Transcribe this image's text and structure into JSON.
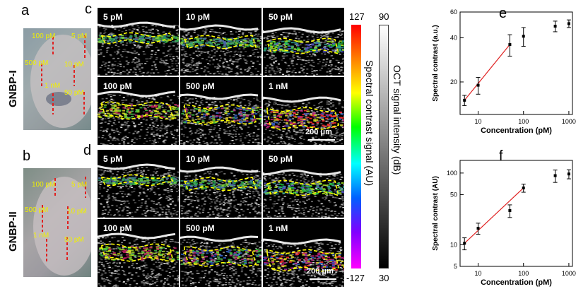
{
  "panels": {
    "a": "a",
    "b": "b",
    "c": "c",
    "d": "d",
    "e": "e",
    "f": "f"
  },
  "side_labels": {
    "top": "GNBP-I",
    "bottom": "GNBP-II"
  },
  "tissue_labels": {
    "top": [
      "100 pM",
      "5 pM",
      "500 pM",
      "10 pM",
      "1 nM",
      "50 pM"
    ],
    "bottom": [
      "100 pM",
      "5 pM",
      "500 pM",
      "10 pM",
      "1 nM",
      "50 pM"
    ]
  },
  "oct_c": [
    "5 pM",
    "10 pM",
    "50 pM",
    "100 pM",
    "500 pM",
    "1 nM"
  ],
  "oct_d": [
    "5 pM",
    "10 pM",
    "50 pM",
    "100 pM",
    "500 pM",
    "1 nM"
  ],
  "scalebar": "200 μm",
  "colorbar_spectral": {
    "max": "127",
    "min": "-127",
    "label": "Spectral contrast signal (AU)"
  },
  "colorbar_oct": {
    "max": "90",
    "min": "30",
    "label": "OCT signal intensity (dB)"
  },
  "colors": {
    "fit_line": "#e02020",
    "label_yellow": "#f0f000",
    "dash": "#ffff00"
  },
  "chart_data": [
    {
      "type": "scatter",
      "panel": "e",
      "xlabel": "Concentration (pM)",
      "ylabel": "Spectral contrast (a.u.)",
      "xscale": "log",
      "yscale": "log",
      "xlim": [
        4,
        1200
      ],
      "ylim": [
        12,
        60
      ],
      "xticks": [
        10,
        100,
        1000
      ],
      "xtick_labels": [
        "10",
        "100",
        "1000"
      ],
      "yticks": [
        20,
        40,
        60
      ],
      "ytick_labels": [
        "20",
        "40",
        "60"
      ],
      "x": [
        5,
        10,
        50,
        100,
        500,
        1000
      ],
      "y": [
        15,
        19,
        36,
        41,
        48,
        50
      ],
      "err": [
        1.2,
        2.5,
        6,
        6,
        4,
        3
      ],
      "fit": {
        "x": [
          5,
          50
        ],
        "y": [
          15,
          36
        ]
      }
    },
    {
      "type": "scatter",
      "panel": "f",
      "xlabel": "Concentration (pM)",
      "ylabel": "Spectral contrast (AU)",
      "xscale": "log",
      "yscale": "log",
      "xlim": [
        4,
        1200
      ],
      "ylim": [
        5,
        150
      ],
      "xticks": [
        10,
        100,
        1000
      ],
      "xtick_labels": [
        "10",
        "100",
        "1000"
      ],
      "yticks": [
        5,
        10,
        50,
        100
      ],
      "ytick_labels": [
        "5",
        "10",
        "50",
        "100"
      ],
      "x": [
        5,
        10,
        50,
        100,
        500,
        1000
      ],
      "y": [
        10.5,
        17,
        30,
        62,
        92,
        97
      ],
      "err": [
        2,
        3,
        6,
        8,
        18,
        14
      ],
      "fit": {
        "x": [
          5,
          100
        ],
        "y": [
          10.5,
          62
        ]
      }
    }
  ]
}
